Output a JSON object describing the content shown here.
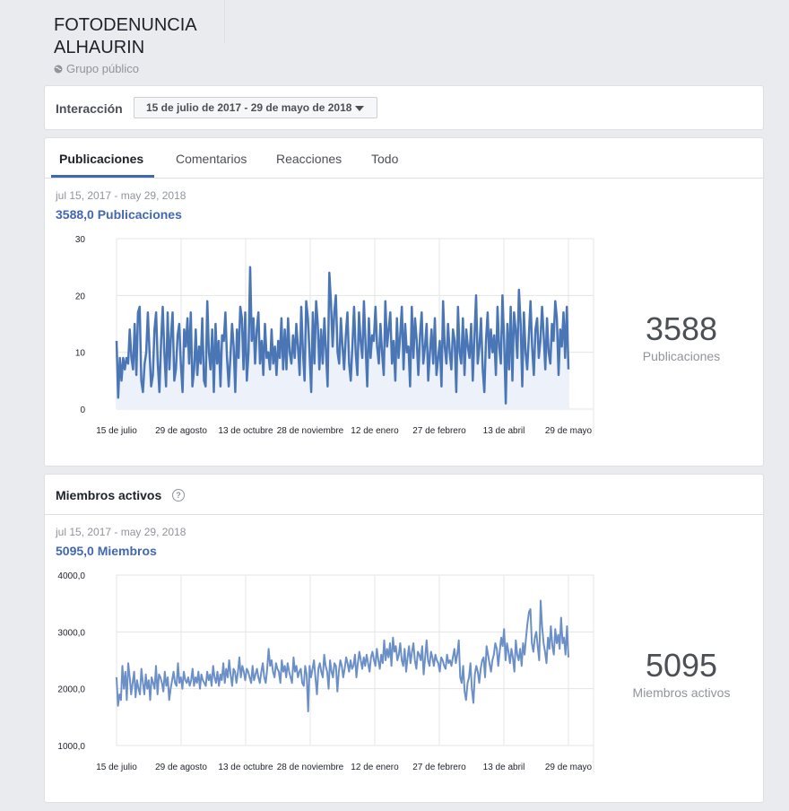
{
  "group": {
    "title": "FOTODENUNCIA ALHAURIN",
    "privacy": "Grupo público"
  },
  "interaction": {
    "label": "Interacción",
    "date_range": "15 de julio de 2017 - 29 de mayo de 2018"
  },
  "tabs": [
    {
      "label": "Publicaciones",
      "active": true
    },
    {
      "label": "Comentarios"
    },
    {
      "label": "Reacciones"
    },
    {
      "label": "Todo"
    }
  ],
  "posts": {
    "range": "jul 15, 2017 - may 29, 2018",
    "total": "3588,0",
    "total_unit": "Publicaciones",
    "summary_number": "3588",
    "summary_label": "Publicaciones"
  },
  "active_members": {
    "title": "Miembros activos",
    "help": "?",
    "range": "jul 15, 2017 - may 29, 2018",
    "total": "5095,0",
    "total_unit": "Miembros",
    "summary_number": "5095",
    "summary_label": "Miembros activos"
  },
  "colors": {
    "accent": "#4267b2",
    "series_posts": "#4a76b6",
    "series_members": "#6b8fc7",
    "area_fill": "#edf1f9"
  },
  "chart_data": [
    {
      "type": "area",
      "title": "",
      "xlabel": "",
      "ylabel": "",
      "x_ticks": [
        "15 de julio",
        "29 de agosto",
        "13 de octubre",
        "28 de noviembre",
        "12 de enero",
        "27 de febrero",
        "13 de abril",
        "29 de mayo"
      ],
      "y_ticks": [
        "0",
        "10",
        "20",
        "30"
      ],
      "ylim": [
        0,
        30
      ],
      "grid": true,
      "series": [
        {
          "values": [
            12,
            2,
            9,
            5,
            9,
            7,
            9,
            8,
            14,
            9,
            7,
            15,
            6,
            17,
            18,
            5,
            3,
            8,
            10,
            17,
            10,
            4,
            6,
            14,
            17,
            8,
            3,
            12,
            18,
            10,
            4,
            17,
            7,
            13,
            17,
            5,
            7,
            13,
            15,
            8,
            3,
            14,
            11,
            16,
            8,
            17,
            4,
            7,
            14,
            6,
            11,
            8,
            16,
            5,
            4,
            19,
            10,
            7,
            14,
            3,
            15,
            8,
            12,
            4,
            13,
            12,
            17,
            9,
            4,
            9,
            15,
            11,
            3,
            14,
            9,
            18,
            16,
            7,
            17,
            5,
            10,
            25,
            12,
            16,
            8,
            14,
            17,
            8,
            12,
            6,
            15,
            9,
            10,
            7,
            14,
            8,
            11,
            6,
            12,
            9,
            16,
            7,
            14,
            7,
            16,
            10,
            8,
            13,
            9,
            15,
            11,
            6,
            18,
            10,
            5,
            19,
            16,
            10,
            3,
            17,
            8,
            19,
            15,
            7,
            14,
            8,
            16,
            10,
            4,
            24,
            19,
            11,
            17,
            20,
            10,
            8,
            16,
            11,
            7,
            13,
            17,
            8,
            5,
            11,
            18,
            10,
            6,
            17,
            12,
            9,
            19,
            11,
            4,
            16,
            9,
            13,
            12,
            18,
            11,
            8,
            15,
            10,
            6,
            19,
            11,
            14,
            17,
            8,
            12,
            5,
            16,
            9,
            13,
            18,
            7,
            15,
            10,
            11,
            4,
            18,
            9,
            16,
            12,
            6,
            13,
            17,
            8,
            11,
            15,
            5,
            10,
            14,
            8,
            16,
            6,
            9,
            12,
            4,
            19,
            11,
            8,
            15,
            10,
            7,
            14,
            12,
            3,
            18,
            10,
            8,
            16,
            6,
            14,
            11,
            9,
            15,
            5,
            13,
            20,
            8,
            11,
            16,
            7,
            3,
            12,
            17,
            9,
            14,
            10,
            13,
            6,
            18,
            11,
            8,
            20,
            12,
            1,
            15,
            7,
            18,
            5,
            17,
            14,
            9,
            21,
            15,
            4,
            17,
            10,
            7,
            13,
            19,
            11,
            6,
            14,
            16,
            9,
            12,
            18,
            13,
            7,
            16,
            10,
            8,
            15,
            12,
            19,
            16,
            6,
            14,
            11,
            17,
            9,
            18,
            7
          ],
          "color": "#4a76b6"
        }
      ]
    },
    {
      "type": "line",
      "title": "",
      "xlabel": "",
      "ylabel": "",
      "x_ticks": [
        "15 de julio",
        "29 de agosto",
        "13 de octubre",
        "28 de noviembre",
        "12 de enero",
        "27 de febrero",
        "13 de abril",
        "29 de mayo"
      ],
      "y_ticks": [
        "1000,0",
        "2000,0",
        "3000,0",
        "4000,0"
      ],
      "ylim": [
        1000,
        4000
      ],
      "grid": true,
      "series": [
        {
          "values": [
            2200,
            1700,
            1900,
            1800,
            2400,
            2000,
            2300,
            1800,
            2450,
            2200,
            1900,
            2100,
            2300,
            1850,
            2150,
            2000,
            1900,
            2350,
            2100,
            1900,
            2250,
            2000,
            2150,
            1800,
            2200,
            2100,
            2000,
            2400,
            1900,
            2250,
            2200,
            2100,
            1950,
            2300,
            2050,
            2200,
            1800,
            2000,
            2150,
            2300,
            2100,
            2050,
            2450,
            2100,
            2200,
            2000,
            2300,
            2150,
            2100,
            2200,
            2050,
            2150,
            2350,
            2050,
            2200,
            2100,
            2300,
            2000,
            2250,
            2150,
            2100,
            2050,
            2300,
            2150,
            2250,
            2050,
            2400,
            2200,
            2100,
            2300,
            2050,
            2250,
            2150,
            2450,
            2100,
            2350,
            2200,
            2500,
            2250,
            2050,
            2350,
            2300,
            2100,
            2300,
            2550,
            2200,
            2400,
            2300,
            2150,
            2350,
            2300,
            2200,
            2100,
            2400,
            2150,
            2250,
            2350,
            2200,
            2100,
            2300,
            2450,
            2200,
            2100,
            2350,
            2700,
            2400,
            2500,
            2300,
            2200,
            2450,
            2350,
            2300,
            2100,
            2500,
            2300,
            2400,
            2200,
            2450,
            2300,
            2200,
            2100,
            2550,
            2300,
            2400,
            2200,
            2300,
            2350,
            2100,
            2050,
            2400,
            2250,
            1600,
            2400,
            2200,
            2350,
            2500,
            2200,
            1900,
            2350,
            2450,
            2300,
            2200,
            2600,
            2400,
            2300,
            2000,
            2500,
            2300,
            2200,
            2450,
            2400,
            1950,
            2300,
            2500,
            2400,
            2200,
            2350,
            2550,
            2450,
            2300,
            2500,
            2350,
            2400,
            2600,
            2200,
            2450,
            2650,
            2500,
            2350,
            2550,
            2400,
            2600,
            2450,
            2300,
            2550,
            2650,
            2500,
            2400,
            2700,
            2500,
            2350,
            2600,
            2450,
            2850,
            2500,
            2700,
            2550,
            2800,
            2400,
            2900,
            2650,
            2750,
            2500,
            2600,
            2800,
            2500,
            2400,
            2700,
            2300,
            2550,
            2750,
            2450,
            2650,
            2800,
            2500,
            2350,
            2650,
            2600,
            2500,
            2750,
            2250,
            2550,
            2850,
            2500,
            2400,
            2650,
            2550,
            2400,
            2600,
            2500,
            2450,
            2300,
            2550,
            2500,
            2400,
            2350,
            2600,
            2450,
            2500,
            2400,
            2550,
            2700,
            2450,
            2600,
            2850,
            2200,
            2100,
            2400,
            1950,
            1800,
            2100,
            2200,
            2450,
            2000,
            1750,
            2250,
            2400,
            2300,
            2100,
            2350,
            2500,
            2550,
            2200,
            2750,
            2600,
            2450,
            2300,
            2500,
            2600,
            2800,
            2700,
            2400,
            2650,
            2900,
            2750,
            3050,
            2500,
            2800,
            2650,
            2450,
            2700,
            2550,
            2300,
            2850,
            2600,
            2500,
            2700,
            2400,
            2800,
            2600,
            2900,
            3150,
            3350,
            3400,
            2800,
            2650,
            2900,
            3000,
            2750,
            2500,
            3550,
            3100,
            2800,
            2650,
            2450,
            2900,
            2700,
            3100,
            2750,
            2600,
            3050,
            2800,
            2950,
            2700,
            3250,
            2800,
            2900,
            2600,
            3100,
            2550
          ],
          "color": "#6b8fc7"
        }
      ]
    }
  ]
}
